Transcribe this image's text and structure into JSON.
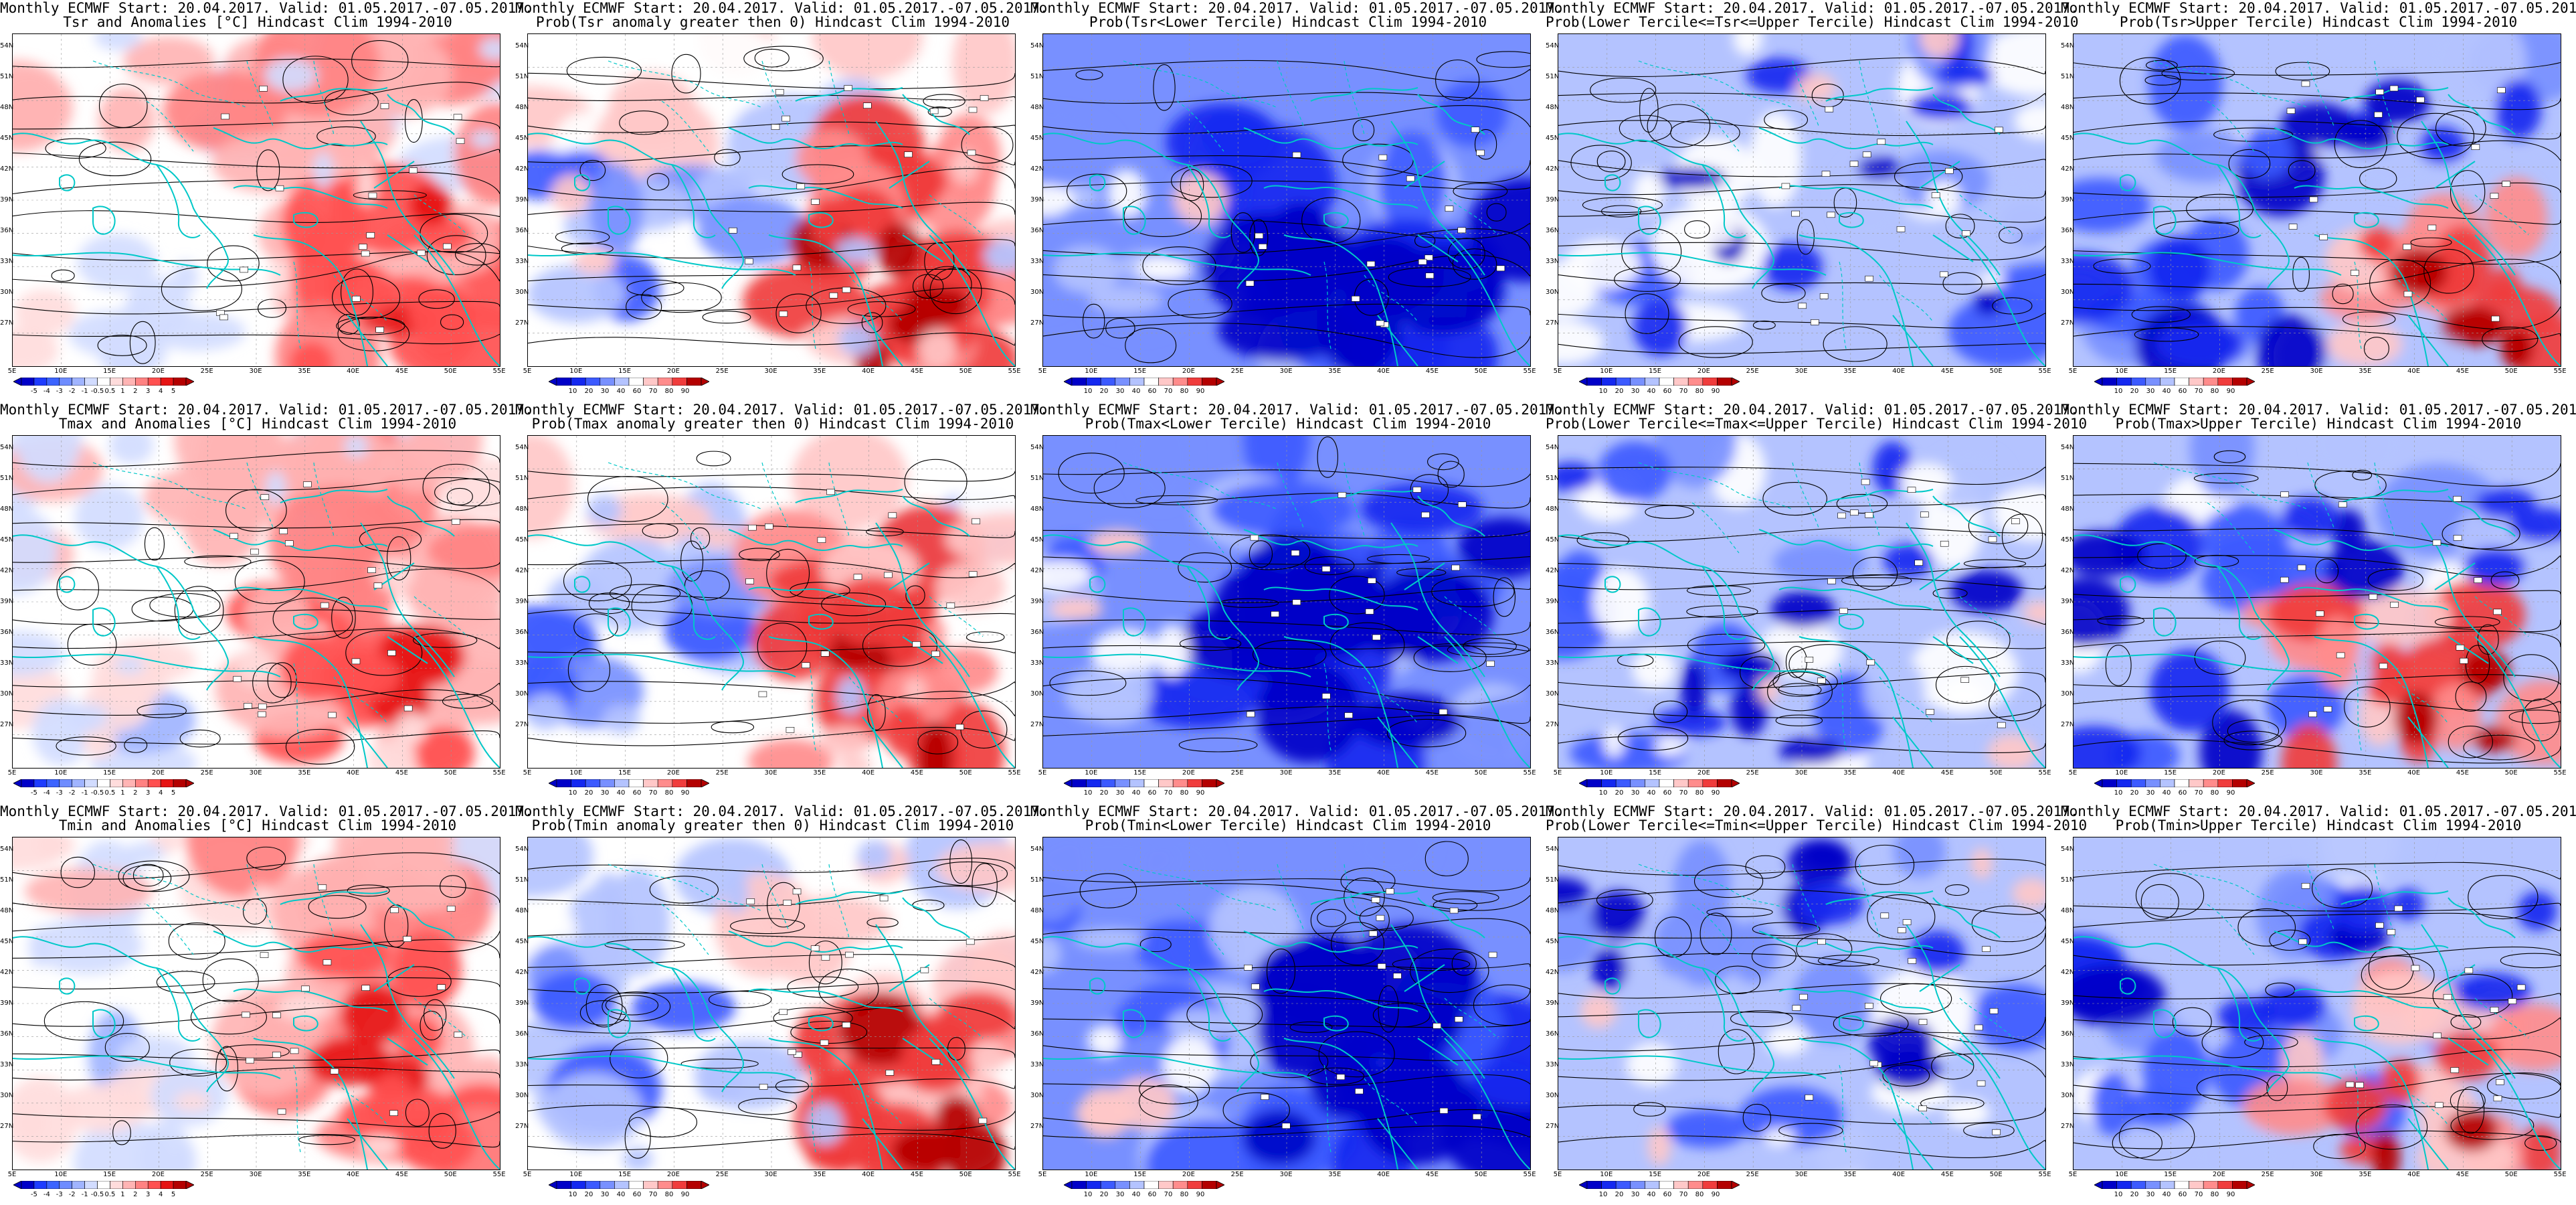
{
  "header_line1": "Monthly ECMWF Start: 20.04.2017. Valid: 01.05.2017.-07.05.2017.",
  "lat_labels": [
    "54N",
    "51N",
    "48N",
    "45N",
    "42N",
    "39N",
    "36N",
    "33N",
    "30N",
    "27N"
  ],
  "lon_labels": [
    "5E",
    "10E",
    "15E",
    "20E",
    "25E",
    "30E",
    "35E",
    "40E",
    "45E",
    "50E",
    "55E"
  ],
  "anomaly_colorbar": [
    "-5",
    "-4",
    "-3",
    "-2",
    "-1",
    "-0.5",
    "0.5",
    "1",
    "2",
    "3",
    "4",
    "5"
  ],
  "prob_colorbar": [
    "10",
    "20",
    "30",
    "40",
    "60",
    "70",
    "80",
    "90"
  ],
  "rows": [
    {
      "variable": "Tsr",
      "panels": [
        {
          "type": "anomaly",
          "line2": "Tsr and Anomalies [°C] Hindcast Clim 1994-2010",
          "pattern": "anom-warm-se"
        },
        {
          "type": "prob",
          "line2": "Prob(Tsr anomaly greater then 0) Hindcast Clim 1994-2010",
          "pattern": "prob-warm-se"
        },
        {
          "type": "prob",
          "line2": "Prob(Tsr<Lower Tercile) Hindcast Clim 1994-2010",
          "pattern": "prob-cold-se"
        },
        {
          "type": "prob",
          "line2": "Prob(Lower Tercile<=Tsr<=Upper Tercile) Hindcast Clim 1994-2010",
          "pattern": "prob-mixed"
        },
        {
          "type": "prob",
          "line2": "Prob(Tsr>Upper Tercile) Hindcast Clim 1994-2010",
          "pattern": "prob-warm-patchy"
        }
      ]
    },
    {
      "variable": "Tmax",
      "panels": [
        {
          "type": "anomaly",
          "line2": "Tmax and Anomalies [°C] Hindcast Clim 1994-2010",
          "pattern": "anom-warm-se"
        },
        {
          "type": "prob",
          "line2": "Prob(Tmax anomaly greater then 0) Hindcast Clim 1994-2010",
          "pattern": "prob-warm-se"
        },
        {
          "type": "prob",
          "line2": "Prob(Tmax<Lower Tercile) Hindcast Clim 1994-2010",
          "pattern": "prob-cold-se"
        },
        {
          "type": "prob",
          "line2": "Prob(Lower Tercile<=Tmax<=Upper Tercile) Hindcast Clim 1994-2010",
          "pattern": "prob-mixed"
        },
        {
          "type": "prob",
          "line2": "Prob(Tmax>Upper Tercile) Hindcast Clim 1994-2010",
          "pattern": "prob-warm-patchy"
        }
      ]
    },
    {
      "variable": "Tmin",
      "panels": [
        {
          "type": "anomaly",
          "line2": "Tmin and Anomalies [°C] Hindcast Clim 1994-2010",
          "pattern": "anom-warm-se"
        },
        {
          "type": "prob",
          "line2": "Prob(Tmin anomaly greater then 0) Hindcast Clim 1994-2010",
          "pattern": "prob-warm-se"
        },
        {
          "type": "prob",
          "line2": "Prob(Tmin<Lower Tercile) Hindcast Clim 1994-2010",
          "pattern": "prob-cold-se"
        },
        {
          "type": "prob",
          "line2": "Prob(Lower Tercile<=Tmin<=Upper Tercile) Hindcast Clim 1994-2010",
          "pattern": "prob-mixed"
        },
        {
          "type": "prob",
          "line2": "Prob(Tmin>Upper Tercile) Hindcast Clim 1994-2010",
          "pattern": "prob-warm-patchy"
        }
      ]
    }
  ],
  "colors": {
    "anom_blue": [
      "#0000c8",
      "#1e3cff",
      "#3c64ff",
      "#6e8cff",
      "#a0b4ff",
      "#d2dcff"
    ],
    "anom_red": [
      "#ffdcdc",
      "#ffb4b4",
      "#ff8282",
      "#ff5050",
      "#e61414",
      "#b40000"
    ],
    "prob": [
      "#0000c8",
      "#1428f0",
      "#3c5aff",
      "#7890ff",
      "#b4c3ff",
      "#ffffff",
      "#ffc8c8",
      "#ff8c8c",
      "#f03c3c",
      "#b40000"
    ],
    "coast": "#00c8c8",
    "contour": "#000000"
  }
}
